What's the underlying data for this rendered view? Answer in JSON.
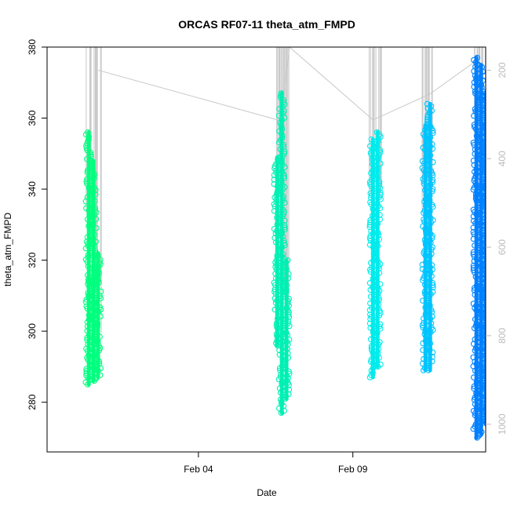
{
  "chart_data": {
    "type": "scatter",
    "title": "ORCAS RF07-11 theta_atm_FMPD",
    "xlabel": "Date",
    "ylabel": "theta_atm_FMPD",
    "x_ticks": [
      "Feb 04",
      "Feb 09"
    ],
    "x_range_days": [
      -0.9,
      13.3
    ],
    "x_tick_days": [
      4,
      9
    ],
    "ylim": [
      266,
      380
    ],
    "y_ticks": [
      280,
      300,
      320,
      340,
      360,
      380
    ],
    "y2_ticks": [
      200,
      400,
      600,
      800,
      1000
    ],
    "y2_anchor": {
      "value_200": 373.5,
      "value_1000": 273.8
    },
    "series": [
      {
        "color": "#00ff7f",
        "points": [
          {
            "x": 0.45,
            "ymin": 285,
            "ymax": 356
          },
          {
            "x": 0.6,
            "ymin": 286,
            "ymax": 348
          },
          {
            "x": 0.75,
            "ymin": 287,
            "ymax": 322
          }
        ]
      },
      {
        "color": "#00f0b4",
        "points": [
          {
            "x": 6.55,
            "ymin": 296,
            "ymax": 349
          },
          {
            "x": 6.7,
            "ymin": 277,
            "ymax": 367
          },
          {
            "x": 6.85,
            "ymin": 281,
            "ymax": 320
          }
        ]
      },
      {
        "color": "#00ebeb",
        "points": [
          {
            "x": 9.65,
            "ymin": 287,
            "ymax": 354
          },
          {
            "x": 9.8,
            "ymin": 290,
            "ymax": 356
          }
        ]
      },
      {
        "color": "#00c4ff",
        "points": [
          {
            "x": 11.35,
            "ymin": 289,
            "ymax": 358
          },
          {
            "x": 11.5,
            "ymin": 289,
            "ymax": 364
          }
        ]
      },
      {
        "color": "#0080ff",
        "points": [
          {
            "x": 13.0,
            "ymin": 270,
            "ymax": 377
          },
          {
            "x": 13.15,
            "ymin": 271,
            "ymax": 375
          },
          {
            "x": 13.3,
            "ymin": 274,
            "ymax": 367
          }
        ]
      }
    ],
    "pressure_trace": {
      "color": "#c8c8c8",
      "connector_points": [
        {
          "x": 0.75,
          "y": 373.5
        },
        {
          "x": 6.65,
          "y": 359.3
        },
        {
          "x": 6.95,
          "y": 380
        },
        {
          "x": 9.65,
          "y": 359.5
        },
        {
          "x": 11.5,
          "y": 366.8
        },
        {
          "x": 13.05,
          "y": 376.5
        }
      ]
    }
  }
}
